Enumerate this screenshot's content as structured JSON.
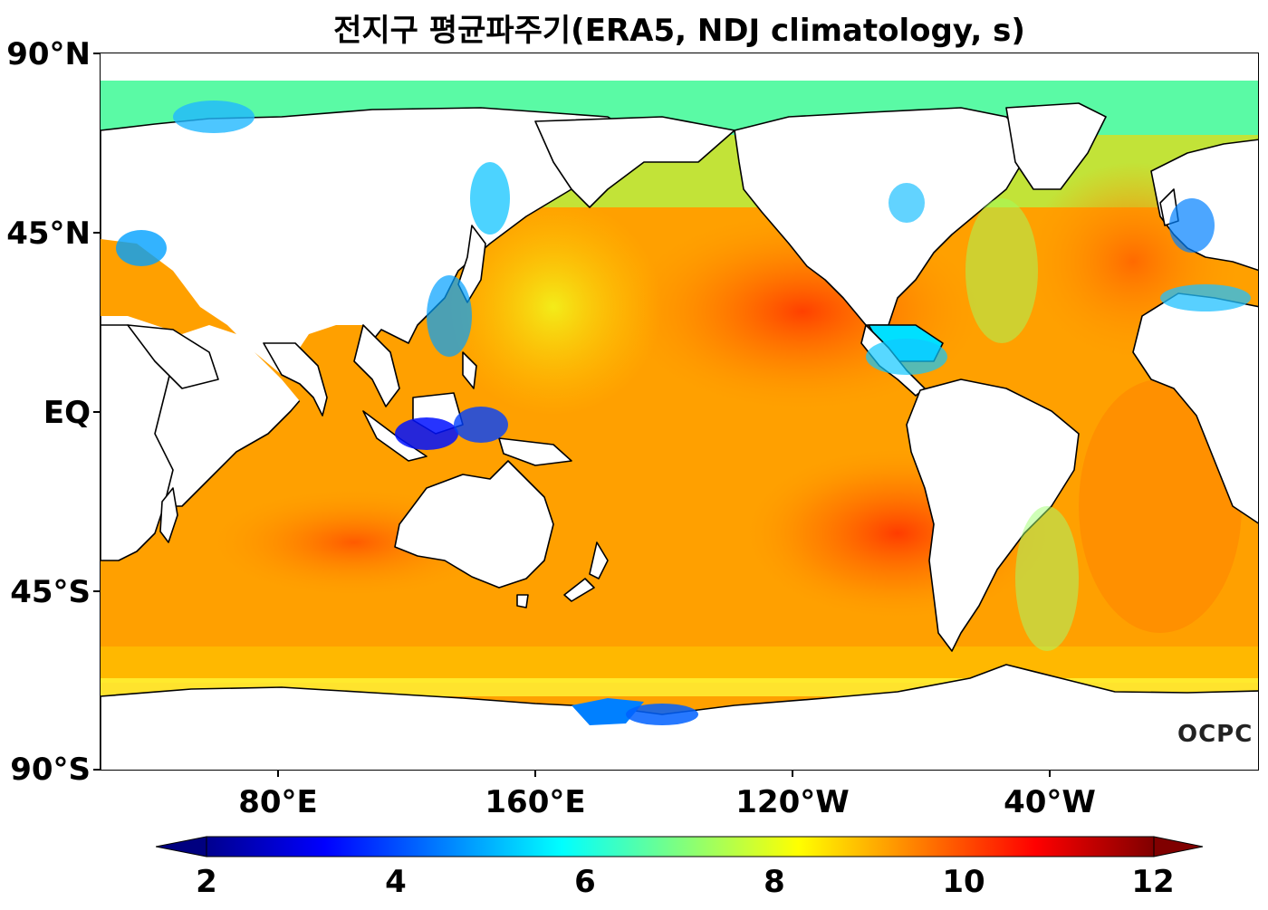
{
  "title": "전지구 평균파주기(ERA5, NDJ climatology, s)",
  "y_axis_labels": [
    "90°N",
    "45°N",
    "EQ",
    "45°S",
    "90°S"
  ],
  "x_axis_labels": [
    "80°E",
    "160°E",
    "120°W",
    "40°W"
  ],
  "colorbar": {
    "ticks": [
      "2",
      "4",
      "6",
      "8",
      "10",
      "12"
    ],
    "min": 2,
    "max": 12,
    "extend": "both",
    "colormap": "jet",
    "colors": [
      "#00007f",
      "#0000ff",
      "#007fff",
      "#00ffff",
      "#7fff7f",
      "#ffff00",
      "#ff7f00",
      "#ff0000",
      "#7f0000"
    ]
  },
  "logo": "OCPC",
  "map": {
    "projection": "equirectangular",
    "central_longitude": "Pacific-centred",
    "variable": "mean wave period",
    "land_color": "#ffffff",
    "coastline_color": "#000000"
  }
}
